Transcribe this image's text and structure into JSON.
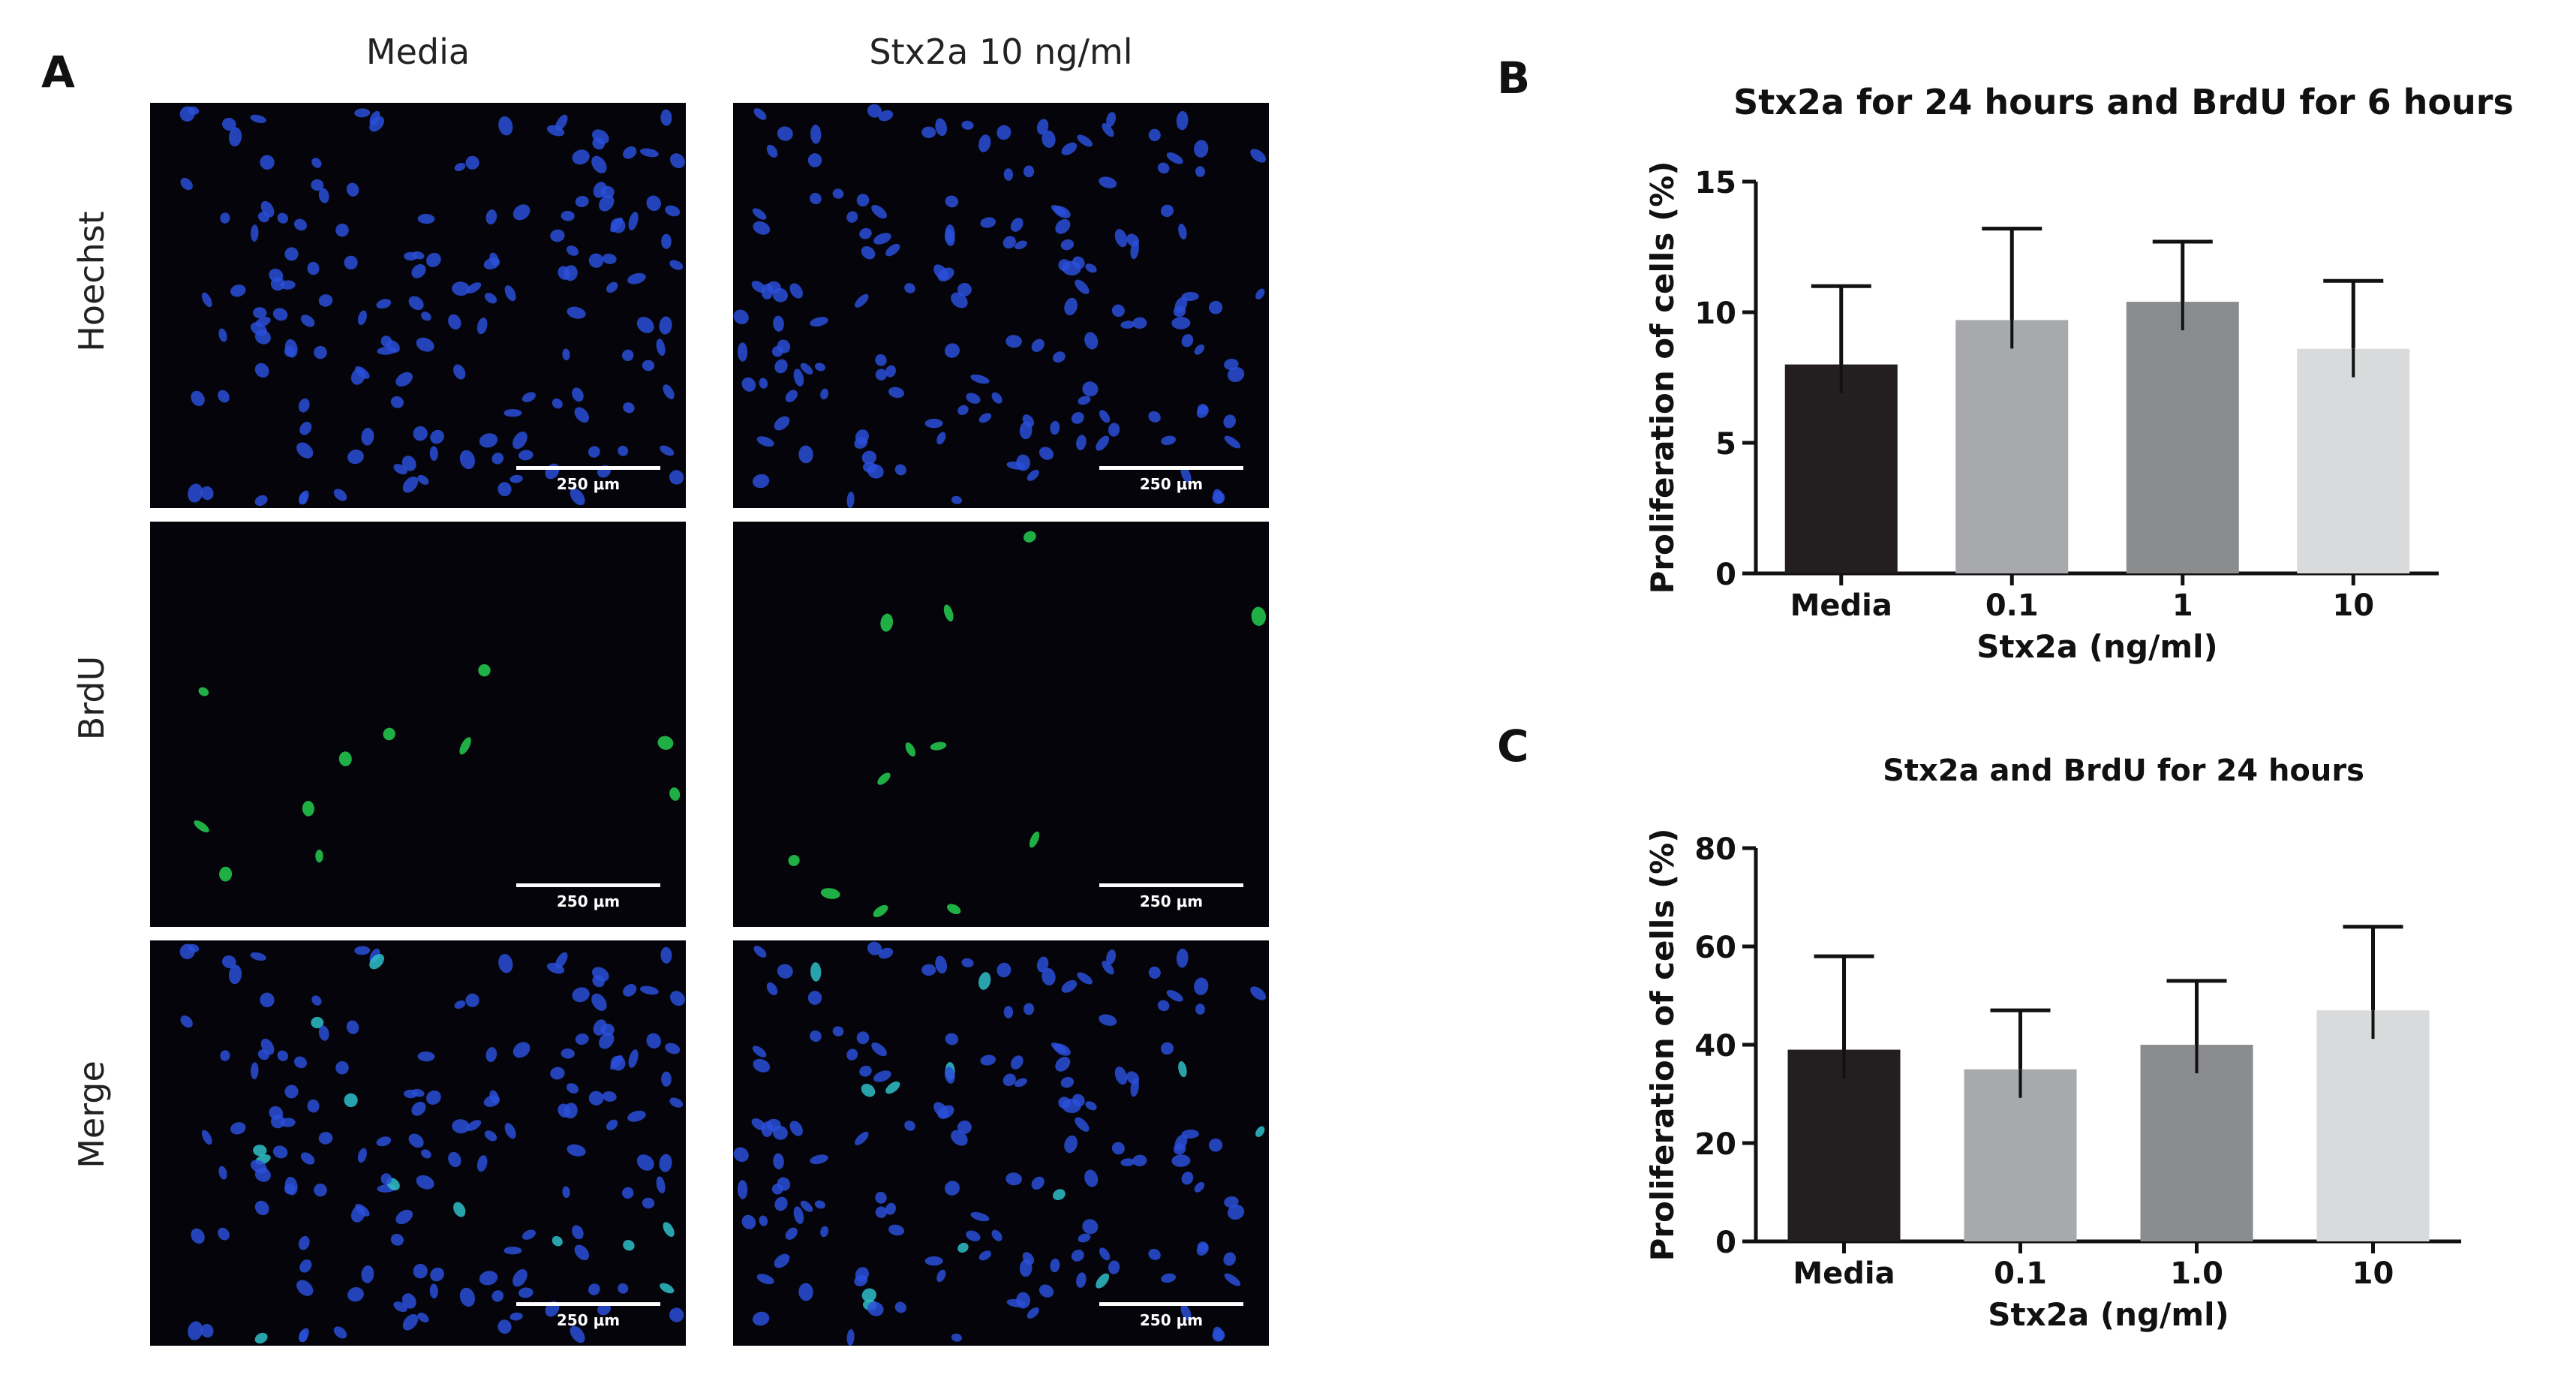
{
  "panel_labels": {
    "a": "A",
    "b": "B",
    "c": "C"
  },
  "micrographs": {
    "columns": [
      "Media",
      "Stx2a 10 ng/ml"
    ],
    "rows": [
      "Hoechst",
      "BrdU",
      "Merge"
    ],
    "scale_bar_label": "250 μm",
    "colors": {
      "nucleus": "#2a4fd8",
      "brdu": "#22c24a",
      "merge_brdu": "#2fc0c8",
      "background": "#04040a"
    }
  },
  "chart_data": [
    {
      "type": "bar",
      "title": "Stx2a for 24 hours and BrdU for 6 hours",
      "xlabel": "Stx2a (ng/ml)",
      "ylabel": "Proliferation of cells (%)",
      "categories": [
        "Media",
        "0.1",
        "1",
        "10"
      ],
      "values": [
        8.0,
        9.7,
        10.4,
        8.6
      ],
      "error_upper": [
        11.0,
        13.2,
        12.7,
        11.2
      ],
      "ylim": [
        0,
        15
      ],
      "yticks": [
        0,
        5,
        10,
        15
      ],
      "bar_colors": [
        "#231f20",
        "#a7a9ac",
        "#8a8c8e",
        "#d9dadb"
      ],
      "grid": false
    },
    {
      "type": "bar",
      "title": "Stx2a and BrdU for 24 hours",
      "xlabel": "Stx2a (ng/ml)",
      "ylabel": "Proliferation of cells (%)",
      "categories": [
        "Media",
        "0.1",
        "1.0",
        "10"
      ],
      "values": [
        39,
        35,
        40,
        47
      ],
      "error_upper": [
        58,
        47,
        53,
        64
      ],
      "ylim": [
        0,
        80
      ],
      "yticks": [
        0,
        20,
        40,
        60,
        80
      ],
      "bar_colors": [
        "#231f20",
        "#a7a9ac",
        "#8a8c8e",
        "#d9dadb"
      ],
      "grid": false
    }
  ]
}
